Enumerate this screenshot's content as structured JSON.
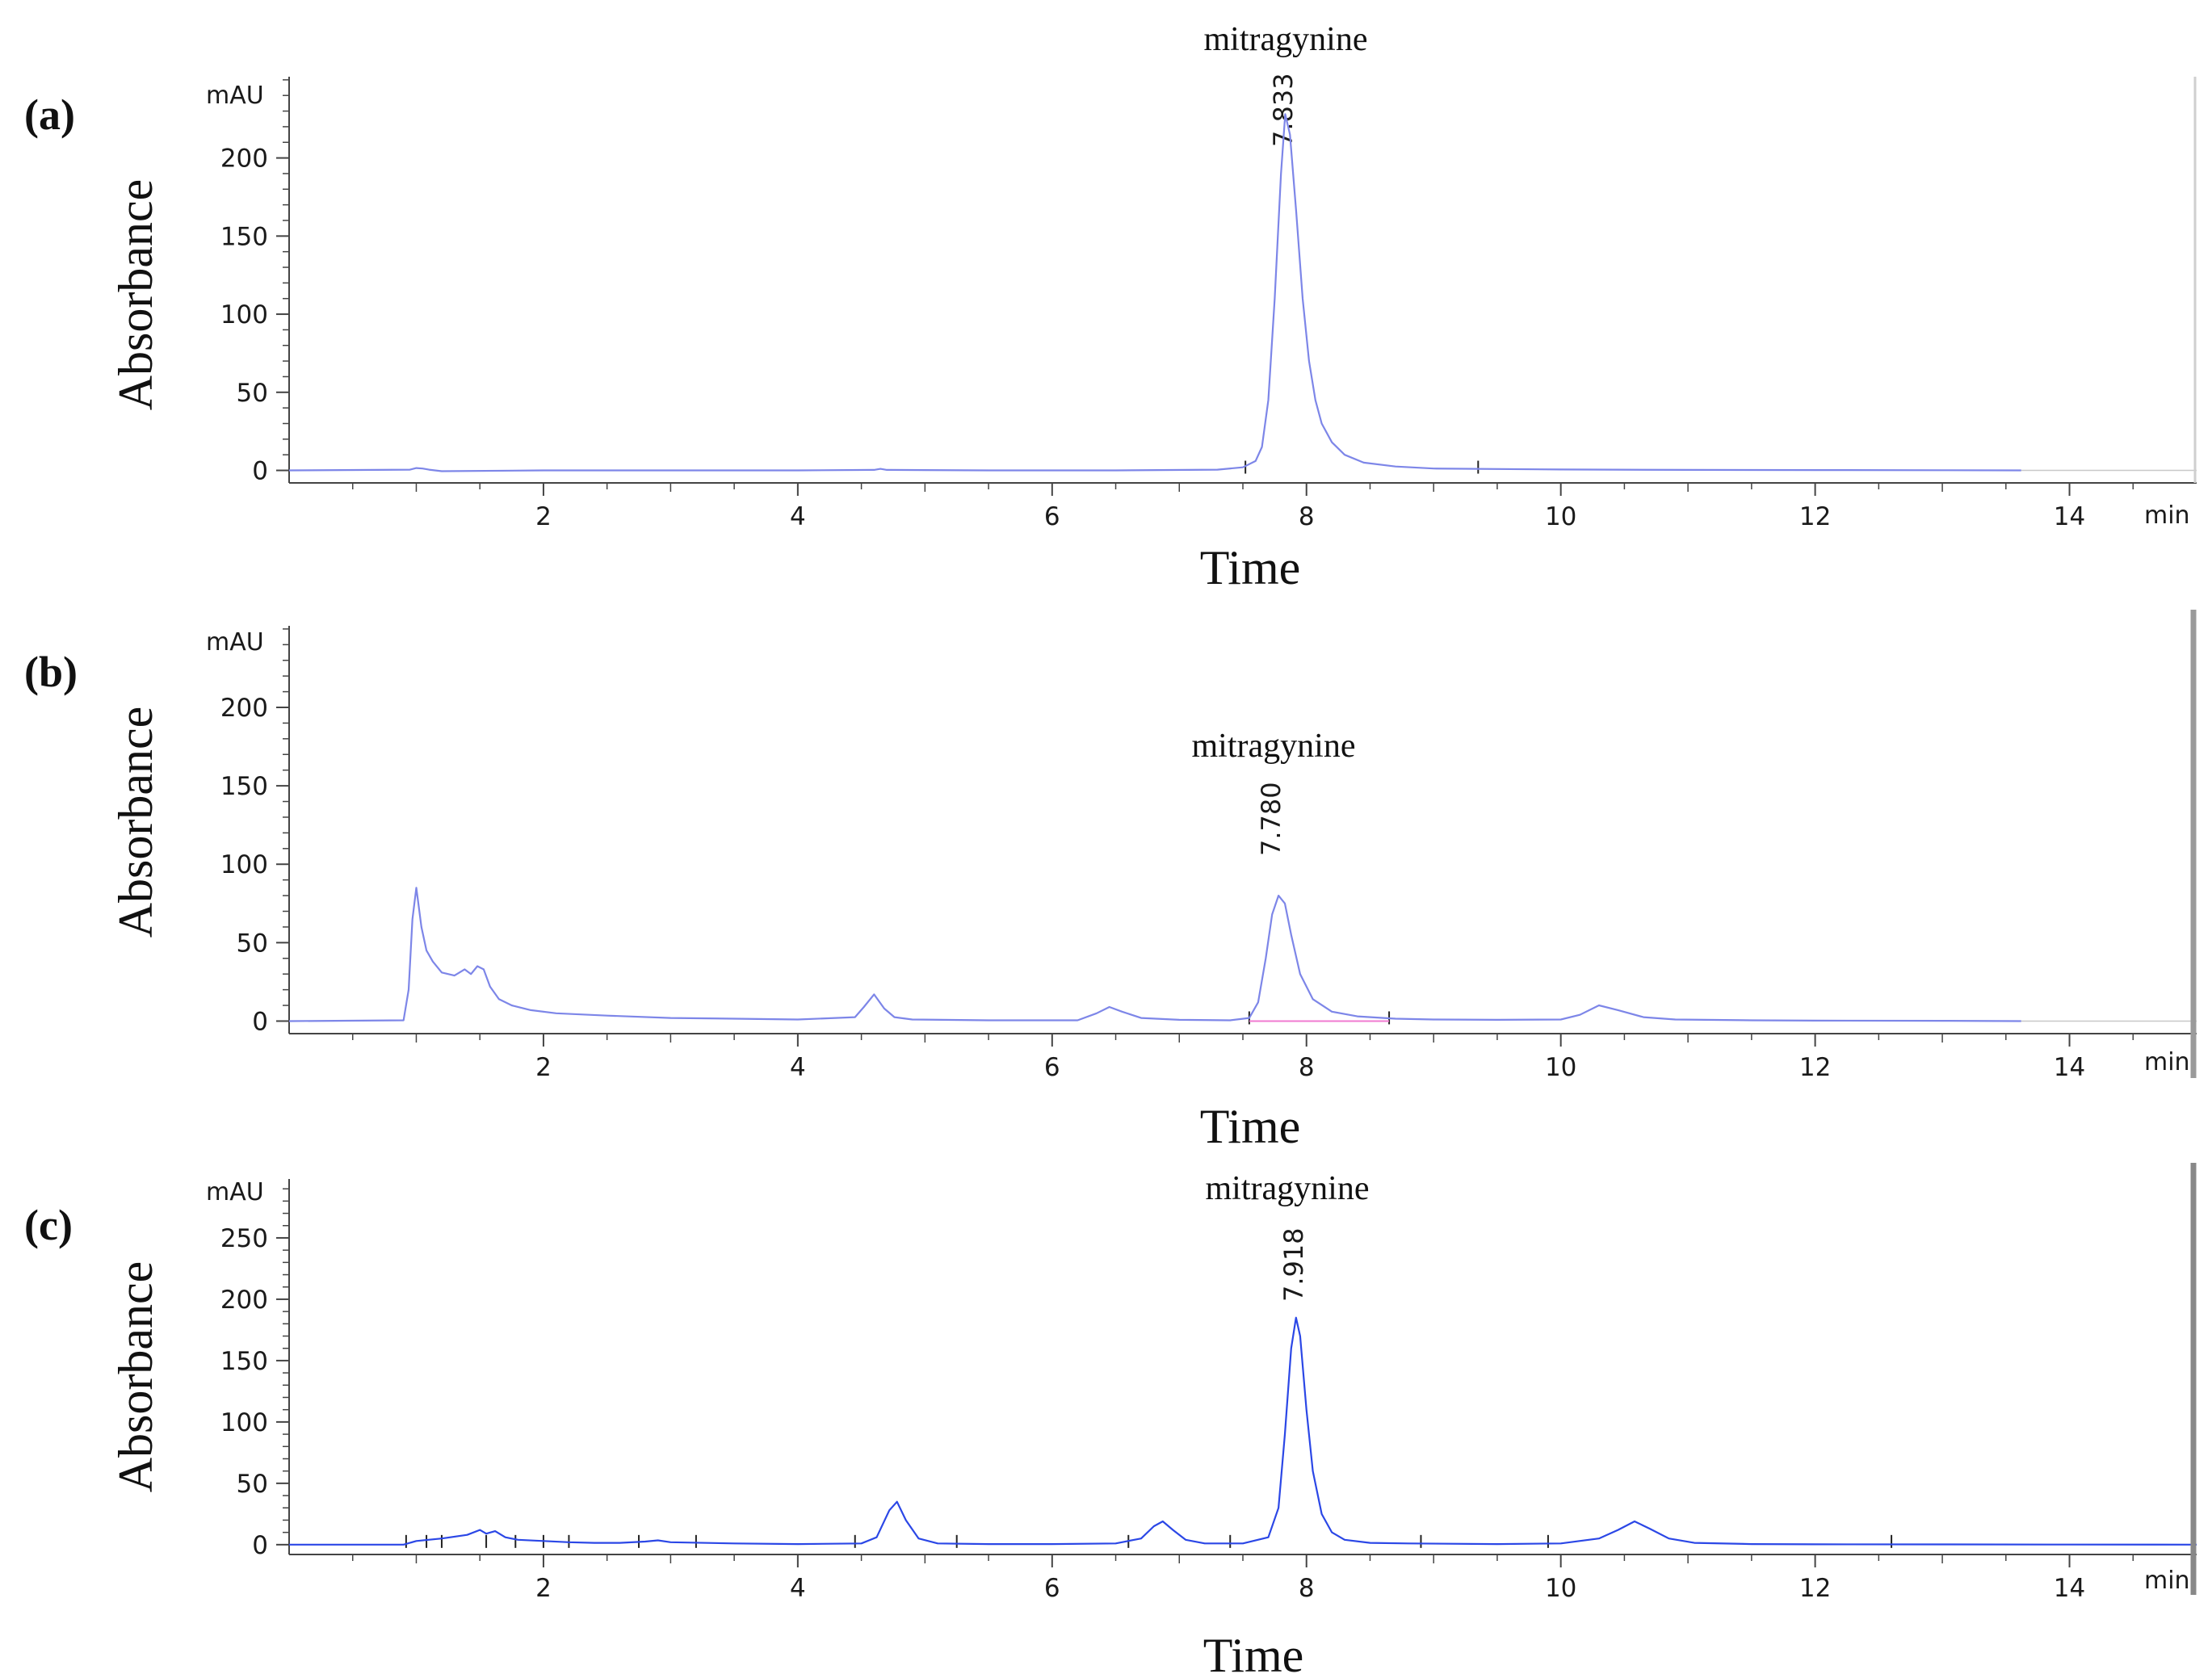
{
  "chart_data": [
    {
      "type": "line",
      "panel_label": "(a)",
      "ylabel": "Absorbance",
      "xlabel": "Time",
      "y_unit": "mAU",
      "x_unit": "min",
      "xlim": [
        0,
        15
      ],
      "ylim": [
        -8,
        252
      ],
      "x_ticks": [
        2,
        4,
        6,
        8,
        10,
        12,
        14
      ],
      "y_ticks": [
        0,
        50,
        100,
        150,
        200
      ],
      "peak_annotations": [
        {
          "name": "mitragynine",
          "retention_time": "7.833",
          "x": 7.833
        }
      ],
      "baseline_marks": [
        7.52,
        9.35
      ],
      "signal_end": 13.62,
      "trace_color": "#7d86e8",
      "series": [
        {
          "x": [
            0,
            0.95,
            1.0,
            1.05,
            1.1,
            1.2,
            2.0,
            3.0,
            4.0,
            4.6,
            4.65,
            4.7,
            5.5,
            6.5,
            7.3,
            7.5,
            7.6,
            7.65,
            7.7,
            7.75,
            7.8,
            7.833,
            7.87,
            7.92,
            7.97,
            8.02,
            8.07,
            8.12,
            8.2,
            8.3,
            8.45,
            8.7,
            9.0,
            10.0,
            11.0,
            12.0,
            13.0,
            13.62
          ],
          "y": [
            0,
            0.5,
            1.5,
            1.2,
            0.5,
            -0.5,
            0,
            0,
            0,
            0.3,
            1,
            0.3,
            0,
            0,
            0.5,
            2,
            6,
            15,
            45,
            110,
            190,
            228,
            215,
            165,
            110,
            70,
            45,
            30,
            18,
            10,
            5,
            2.5,
            1.2,
            0.6,
            0.3,
            0.2,
            0.1,
            0
          ]
        }
      ]
    },
    {
      "type": "line",
      "panel_label": "(b)",
      "ylabel": "Absorbance",
      "xlabel": "Time",
      "y_unit": "mAU",
      "x_unit": "min",
      "xlim": [
        0,
        15
      ],
      "ylim": [
        -8,
        252
      ],
      "x_ticks": [
        2,
        4,
        6,
        8,
        10,
        12,
        14
      ],
      "y_ticks": [
        0,
        50,
        100,
        150,
        200
      ],
      "peak_annotations": [
        {
          "name": "mitragynine",
          "retention_time": "7.780",
          "x": 7.78
        }
      ],
      "baseline_marks": [
        7.55,
        8.65
      ],
      "baseline_segment": {
        "x": [
          7.55,
          8.65
        ],
        "y": [
          0,
          0
        ],
        "color": "#f07ad0"
      },
      "signal_end": 13.62,
      "trace_color": "#7d86e8",
      "series": [
        {
          "x": [
            0,
            0.9,
            0.94,
            0.97,
            1.0,
            1.04,
            1.08,
            1.13,
            1.2,
            1.3,
            1.38,
            1.43,
            1.48,
            1.53,
            1.58,
            1.65,
            1.75,
            1.9,
            2.1,
            2.5,
            3.0,
            3.5,
            4.0,
            4.45,
            4.52,
            4.6,
            4.68,
            4.76,
            4.9,
            5.5,
            6.2,
            6.35,
            6.45,
            6.55,
            6.7,
            7.0,
            7.4,
            7.55,
            7.62,
            7.68,
            7.73,
            7.78,
            7.83,
            7.88,
            7.95,
            8.05,
            8.2,
            8.4,
            8.7,
            9.0,
            9.5,
            10.0,
            10.15,
            10.3,
            10.45,
            10.65,
            10.9,
            11.5,
            12.0,
            13.0,
            13.62
          ],
          "y": [
            0,
            0.5,
            20,
            65,
            85,
            60,
            45,
            38,
            31,
            29,
            33,
            30,
            35,
            33,
            22,
            14,
            10,
            7,
            5,
            3.5,
            2,
            1.5,
            1,
            2.5,
            9,
            17,
            8,
            2.5,
            1,
            0.5,
            0.5,
            5,
            9,
            6,
            2,
            0.8,
            0.5,
            2,
            12,
            40,
            68,
            80,
            75,
            55,
            30,
            14,
            6,
            3,
            1.5,
            1,
            0.8,
            1,
            4,
            10,
            7,
            2.5,
            1,
            0.5,
            0.3,
            0.2,
            0
          ]
        }
      ]
    },
    {
      "type": "line",
      "panel_label": "(c)",
      "ylabel": "Absorbance",
      "xlabel": "Time",
      "y_unit": "mAU",
      "x_unit": "min",
      "xlim": [
        0,
        15
      ],
      "ylim": [
        -8,
        298
      ],
      "x_ticks": [
        2,
        4,
        6,
        8,
        10,
        12,
        14
      ],
      "y_ticks": [
        0,
        50,
        100,
        150,
        200,
        250
      ],
      "peak_annotations": [
        {
          "name": "mitragynine",
          "retention_time": "7.918",
          "x": 7.918
        }
      ],
      "baseline_marks": [
        0.92,
        1.08,
        1.2,
        1.55,
        1.78,
        2.0,
        2.2,
        2.75,
        3.2,
        4.45,
        5.25,
        6.6,
        7.4,
        8.9,
        9.9,
        12.6
      ],
      "signal_end": 15,
      "trace_color": "#2b47e6",
      "series": [
        {
          "x": [
            0,
            0.9,
            1.0,
            1.2,
            1.4,
            1.5,
            1.55,
            1.62,
            1.7,
            1.8,
            2.0,
            2.2,
            2.4,
            2.6,
            2.8,
            2.9,
            3.0,
            3.5,
            4.0,
            4.5,
            4.62,
            4.72,
            4.78,
            4.85,
            4.95,
            5.1,
            5.5,
            6.0,
            6.5,
            6.7,
            6.8,
            6.87,
            6.95,
            7.05,
            7.2,
            7.5,
            7.7,
            7.78,
            7.83,
            7.88,
            7.918,
            7.95,
            8.0,
            8.05,
            8.12,
            8.2,
            8.3,
            8.5,
            8.8,
            9.5,
            10.0,
            10.3,
            10.45,
            10.58,
            10.7,
            10.85,
            11.05,
            11.5,
            12.0,
            13.0,
            14.0,
            15.0
          ],
          "y": [
            0,
            0,
            3,
            5,
            8,
            12,
            9,
            11,
            6,
            4,
            3,
            2,
            1.5,
            1.5,
            2.5,
            3.5,
            2,
            1,
            0.5,
            1,
            6,
            28,
            35,
            20,
            5,
            1,
            0.5,
            0.5,
            1,
            5,
            15,
            19,
            12,
            4,
            1,
            1,
            6,
            30,
            90,
            160,
            185,
            170,
            110,
            60,
            25,
            10,
            4,
            1.5,
            1,
            0.5,
            1,
            5,
            12,
            19,
            13,
            5,
            1.5,
            0.5,
            0.3,
            0.2,
            0.1,
            0
          ]
        }
      ]
    }
  ]
}
